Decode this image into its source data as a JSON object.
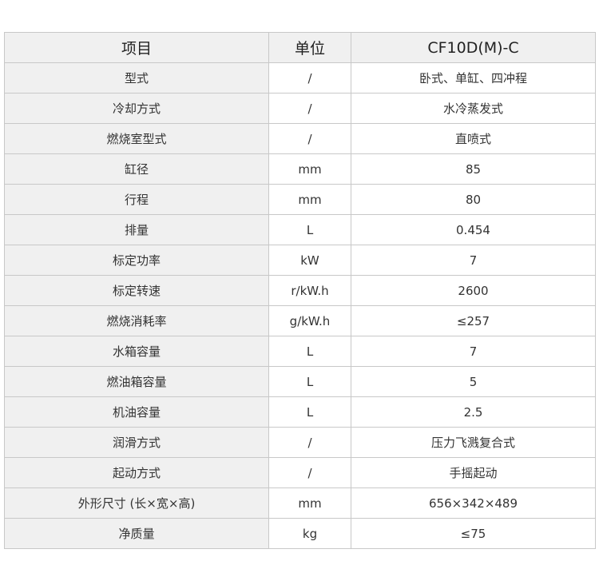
{
  "headers": [
    "项目",
    "单位",
    "CF10D(M)-C"
  ],
  "rows": [
    [
      "型式",
      "/",
      "卧式、单缸、四冲程"
    ],
    [
      "冷却方式",
      "/",
      "水冷蒸发式"
    ],
    [
      "燃烧室型式",
      "/",
      "直喷式"
    ],
    [
      "缸径",
      "mm",
      "85"
    ],
    [
      "行程",
      "mm",
      "80"
    ],
    [
      "排量",
      "L",
      "0.454"
    ],
    [
      "标定功率",
      "kW",
      "7"
    ],
    [
      "标定转速",
      "r/kW.h",
      "2600"
    ],
    [
      "燃烧消耗率",
      "g/kW.h",
      "≤257"
    ],
    [
      "水箱容量",
      "L",
      "7"
    ],
    [
      "燃油箱容量",
      "L",
      "5"
    ],
    [
      "机油容量",
      "L",
      "2.5"
    ],
    [
      "润滑方式",
      "/",
      "压力飞溅复合式"
    ],
    [
      "起动方式",
      "/",
      "手摇起动"
    ],
    [
      "外形尺寸 (长×宽×高)",
      "mm",
      "656×342×489"
    ],
    [
      "净质量",
      "kg",
      "≤75"
    ]
  ]
}
